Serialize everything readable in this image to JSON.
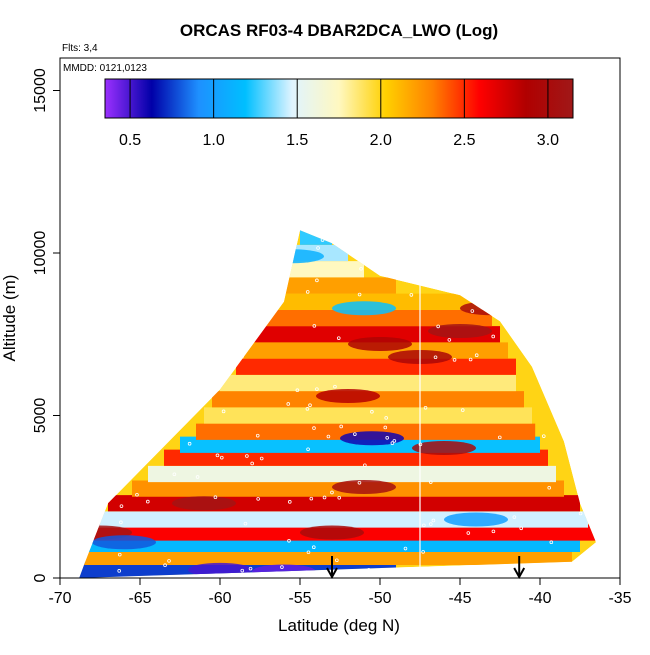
{
  "chart_data": {
    "type": "heatmap",
    "title": "ORCAS RF03-4 DBAR2DCA_LWO (Log)",
    "flights_note": "Flts: 3,4",
    "date_note": "MMDD: 0121,0123",
    "xlabel": "Latitude (deg N)",
    "ylabel": "Altitude (m)",
    "xlim": [
      -70,
      -35
    ],
    "ylim": [
      0,
      16000
    ],
    "x_ticks": [
      -70,
      -65,
      -60,
      -55,
      -50,
      -45,
      -40,
      -35
    ],
    "y_ticks": [
      0,
      5000,
      10000,
      15000
    ],
    "colorbar": {
      "range": [
        0.35,
        3.15
      ],
      "ticks": [
        0.5,
        1.0,
        1.5,
        2.0,
        2.5,
        3.0
      ],
      "tick_labels": [
        "0.5",
        "1.0",
        "1.5",
        "2.0",
        "2.5",
        "3.0"
      ],
      "colors": [
        "#9b30ff",
        "#0000a8",
        "#1e90ff",
        "#00bfff",
        "#e0f4ff",
        "#fff8c0",
        "#ffd000",
        "#ff8000",
        "#ff0000",
        "#b00000",
        "#a01818"
      ]
    },
    "envelope": {
      "lat": [
        -68.5,
        -67,
        -64,
        -60,
        -56,
        -55,
        -53,
        -50,
        -45,
        -42.5,
        -40.5,
        -38.5,
        -37.5,
        -36.5,
        -38,
        -68.8
      ],
      "alt": [
        400,
        2300,
        3800,
        5800,
        8500,
        10700,
        10300,
        9300,
        8700,
        7900,
        6500,
        4200,
        2300,
        1100,
        500,
        0
      ]
    },
    "arrows": [
      -53,
      -41.3
    ],
    "white_line_lat": -47.5,
    "bands": [
      {
        "alt": 250,
        "lat_range": [
          -68.8,
          -49
        ],
        "value": 0.75
      },
      {
        "alt": 650,
        "lat_range": [
          -68.5,
          -38
        ],
        "value": 2.2
      },
      {
        "alt": 1050,
        "lat_range": [
          -68.5,
          -37.5
        ],
        "value": 1.15
      },
      {
        "alt": 1400,
        "lat_range": [
          -68.2,
          -36.5
        ],
        "value": 2.6
      },
      {
        "alt": 1800,
        "lat_range": [
          -68,
          -37
        ],
        "value": 1.45
      },
      {
        "alt": 2300,
        "lat_range": [
          -67,
          -37.5
        ],
        "value": 2.75
      },
      {
        "alt": 2750,
        "lat_range": [
          -65.5,
          -38.5
        ],
        "value": 2.25
      },
      {
        "alt": 3200,
        "lat_range": [
          -64.5,
          -39
        ],
        "value": 1.6
      },
      {
        "alt": 3700,
        "lat_range": [
          -63.5,
          -39.5
        ],
        "value": 2.5
      },
      {
        "alt": 4100,
        "lat_range": [
          -62.5,
          -40
        ],
        "value": 1.2
      },
      {
        "alt": 4500,
        "lat_range": [
          -61.5,
          -40.3
        ],
        "value": 2.35
      },
      {
        "alt": 5000,
        "lat_range": [
          -61,
          -40.5
        ],
        "value": 1.9
      },
      {
        "alt": 5500,
        "lat_range": [
          -60.5,
          -41
        ],
        "value": 2.3
      },
      {
        "alt": 6000,
        "lat_range": [
          -60,
          -41.5
        ],
        "value": 1.85
      },
      {
        "alt": 6500,
        "lat_range": [
          -59,
          -41.5
        ],
        "value": 2.5
      },
      {
        "alt": 7000,
        "lat_range": [
          -58.5,
          -42
        ],
        "value": 2.2
      },
      {
        "alt": 7500,
        "lat_range": [
          -58,
          -42.5
        ],
        "value": 2.7
      },
      {
        "alt": 8000,
        "lat_range": [
          -57.5,
          -43
        ],
        "value": 2.35
      },
      {
        "alt": 8500,
        "lat_range": [
          -57,
          -44
        ],
        "value": 2.1
      },
      {
        "alt": 9000,
        "lat_range": [
          -56.5,
          -49
        ],
        "value": 2.2
      },
      {
        "alt": 9500,
        "lat_range": [
          -56,
          -51
        ],
        "value": 1.75
      },
      {
        "alt": 10000,
        "lat_range": [
          -55.8,
          -52
        ],
        "value": 1.4
      },
      {
        "alt": 10500,
        "lat_range": [
          -55,
          -53
        ],
        "value": 1.25
      }
    ],
    "patches": [
      {
        "lat": -56,
        "alt": 200,
        "value": 0.45
      },
      {
        "lat": -60,
        "alt": 250,
        "value": 0.5
      },
      {
        "lat": -50,
        "alt": 7200,
        "value": 2.9
      },
      {
        "lat": -45,
        "alt": 7600,
        "value": 3.1
      },
      {
        "lat": -43,
        "alt": 8300,
        "value": 3.0
      },
      {
        "lat": -47.5,
        "alt": 6800,
        "value": 2.95
      },
      {
        "lat": -52,
        "alt": 5600,
        "value": 2.85
      },
      {
        "lat": -50.5,
        "alt": 4300,
        "value": 0.6
      },
      {
        "lat": -51,
        "alt": 2800,
        "value": 3.05
      },
      {
        "lat": -61,
        "alt": 2300,
        "value": 3.1
      },
      {
        "lat": -46,
        "alt": 4000,
        "value": 3.0
      },
      {
        "lat": -53,
        "alt": 1400,
        "value": 3.0
      },
      {
        "lat": -67.5,
        "alt": 1400,
        "value": 3.1
      },
      {
        "lat": -51,
        "alt": 8300,
        "value": 1.2
      },
      {
        "lat": -66,
        "alt": 1100,
        "value": 0.8
      },
      {
        "lat": -44,
        "alt": 1800,
        "value": 1.0
      },
      {
        "lat": -55.5,
        "alt": 9900,
        "value": 1.1
      }
    ]
  }
}
